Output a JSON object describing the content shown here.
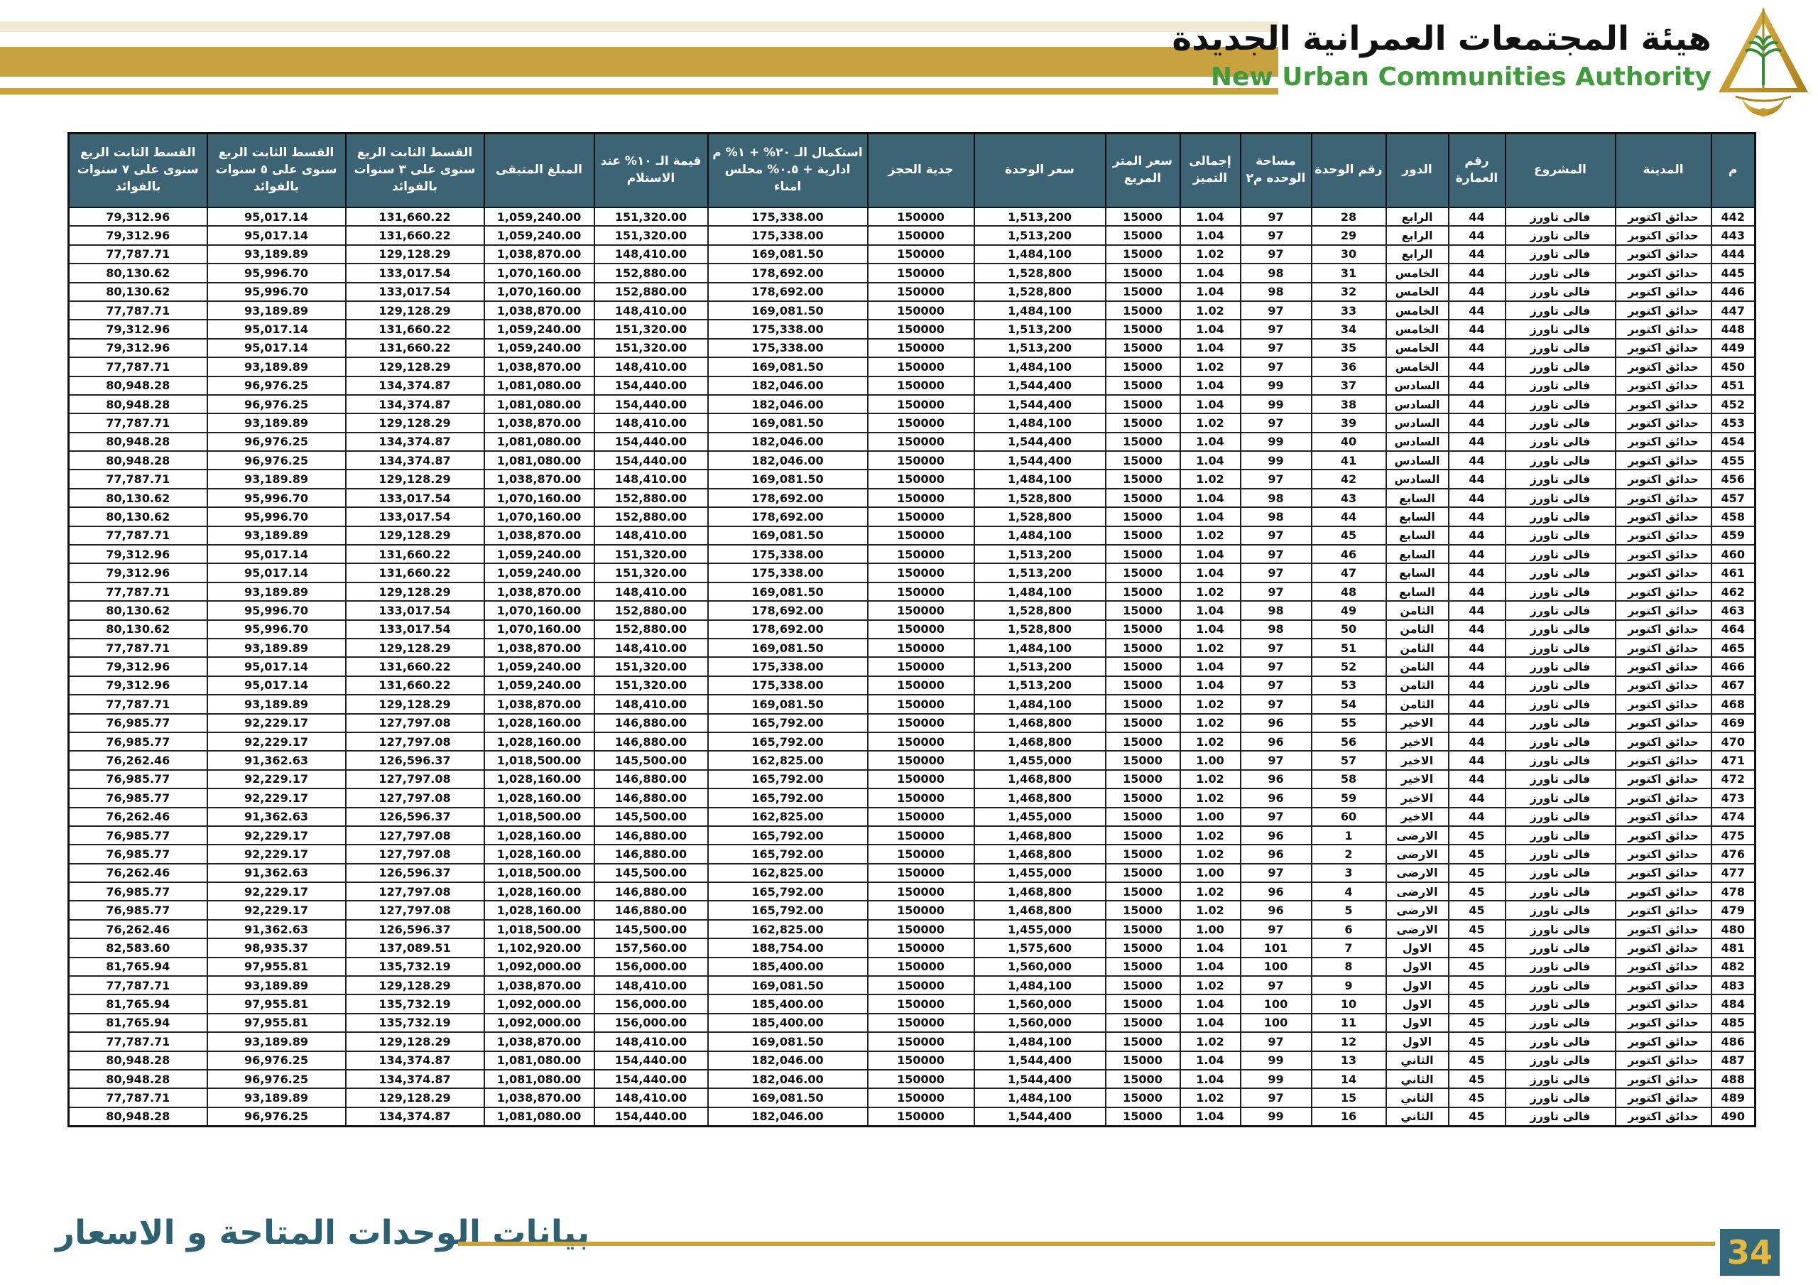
{
  "header": {
    "title_ar": "هيئة المجتمعات العمرانية الجديدة",
    "title_en": "New Urban Communities Authority",
    "logo_icon": "nuca-pyramid-palm-logo"
  },
  "colors": {
    "teal_header": "#3d6474",
    "gold_accent": "#c8a23f",
    "red_building_no": "#e8322a",
    "green_title": "#3f9b3c",
    "footer_teal": "#2d6070",
    "page_number_gold": "#e5b83e"
  },
  "footer": {
    "caption": "بيانات الوحدات المتاحة و الاسعار",
    "page_number": "34"
  },
  "table": {
    "columns": [
      {
        "id": "serial",
        "label": "م"
      },
      {
        "id": "city",
        "label": "المدينة"
      },
      {
        "id": "project",
        "label": "المشروع"
      },
      {
        "id": "building_no",
        "label": "رقم العمارة"
      },
      {
        "id": "floor",
        "label": "الدور"
      },
      {
        "id": "unit_no",
        "label": "رقم الوحدة"
      },
      {
        "id": "area_m2",
        "label": "مساحة الوحده م٢"
      },
      {
        "id": "premium_total",
        "label": "إجمالى التميز"
      },
      {
        "id": "price_per_m2",
        "label": "سعر المتر المربع"
      },
      {
        "id": "unit_price",
        "label": "سعر الوحدة"
      },
      {
        "id": "reservation_deposit",
        "label": "جدية الحجز"
      },
      {
        "id": "completion_20pct",
        "label": "استكمال الـ ٢٠% + ١% م ادارية + ٠.٥% مجلس امناء"
      },
      {
        "id": "value_10pct_delivery",
        "label": "قيمة الـ ١٠% عند الاستلام"
      },
      {
        "id": "remaining_amount",
        "label": "المبلغ المتبقى"
      },
      {
        "id": "installment_3y",
        "label": "القسط الثابت الربع سنوى على ٣ سنوات بالفوائد"
      },
      {
        "id": "installment_5y",
        "label": "القسط الثابت الربع سنوى على ٥ سنوات بالفوائد"
      },
      {
        "id": "installment_7y",
        "label": "القسط الثابت الربع سنوى على ٧ سنوات بالفوائد"
      }
    ],
    "rows": [
      [
        "442",
        "حدائق اكتوبر",
        "فالى تاورز",
        "44",
        "الرابع",
        "28",
        "97",
        "1.04",
        "15000",
        "1,513,200",
        "150000",
        "175,338.00",
        "151,320.00",
        "1,059,240.00",
        "131,660.22",
        "95,017.14",
        "79,312.96"
      ],
      [
        "443",
        "حدائق اكتوبر",
        "فالى تاورز",
        "44",
        "الرابع",
        "29",
        "97",
        "1.04",
        "15000",
        "1,513,200",
        "150000",
        "175,338.00",
        "151,320.00",
        "1,059,240.00",
        "131,660.22",
        "95,017.14",
        "79,312.96"
      ],
      [
        "444",
        "حدائق اكتوبر",
        "فالى تاورز",
        "44",
        "الرابع",
        "30",
        "97",
        "1.02",
        "15000",
        "1,484,100",
        "150000",
        "169,081.50",
        "148,410.00",
        "1,038,870.00",
        "129,128.29",
        "93,189.89",
        "77,787.71"
      ],
      [
        "445",
        "حدائق اكتوبر",
        "فالى تاورز",
        "44",
        "الخامس",
        "31",
        "98",
        "1.04",
        "15000",
        "1,528,800",
        "150000",
        "178,692.00",
        "152,880.00",
        "1,070,160.00",
        "133,017.54",
        "95,996.70",
        "80,130.62"
      ],
      [
        "446",
        "حدائق اكتوبر",
        "فالى تاورز",
        "44",
        "الخامس",
        "32",
        "98",
        "1.04",
        "15000",
        "1,528,800",
        "150000",
        "178,692.00",
        "152,880.00",
        "1,070,160.00",
        "133,017.54",
        "95,996.70",
        "80,130.62"
      ],
      [
        "447",
        "حدائق اكتوبر",
        "فالى تاورز",
        "44",
        "الخامس",
        "33",
        "97",
        "1.02",
        "15000",
        "1,484,100",
        "150000",
        "169,081.50",
        "148,410.00",
        "1,038,870.00",
        "129,128.29",
        "93,189.89",
        "77,787.71"
      ],
      [
        "448",
        "حدائق اكتوبر",
        "فالى تاورز",
        "44",
        "الخامس",
        "34",
        "97",
        "1.04",
        "15000",
        "1,513,200",
        "150000",
        "175,338.00",
        "151,320.00",
        "1,059,240.00",
        "131,660.22",
        "95,017.14",
        "79,312.96"
      ],
      [
        "449",
        "حدائق اكتوبر",
        "فالى تاورز",
        "44",
        "الخامس",
        "35",
        "97",
        "1.04",
        "15000",
        "1,513,200",
        "150000",
        "175,338.00",
        "151,320.00",
        "1,059,240.00",
        "131,660.22",
        "95,017.14",
        "79,312.96"
      ],
      [
        "450",
        "حدائق اكتوبر",
        "فالى تاورز",
        "44",
        "الخامس",
        "36",
        "97",
        "1.02",
        "15000",
        "1,484,100",
        "150000",
        "169,081.50",
        "148,410.00",
        "1,038,870.00",
        "129,128.29",
        "93,189.89",
        "77,787.71"
      ],
      [
        "451",
        "حدائق اكتوبر",
        "فالى تاورز",
        "44",
        "السادس",
        "37",
        "99",
        "1.04",
        "15000",
        "1,544,400",
        "150000",
        "182,046.00",
        "154,440.00",
        "1,081,080.00",
        "134,374.87",
        "96,976.25",
        "80,948.28"
      ],
      [
        "452",
        "حدائق اكتوبر",
        "فالى تاورز",
        "44",
        "السادس",
        "38",
        "99",
        "1.04",
        "15000",
        "1,544,400",
        "150000",
        "182,046.00",
        "154,440.00",
        "1,081,080.00",
        "134,374.87",
        "96,976.25",
        "80,948.28"
      ],
      [
        "453",
        "حدائق اكتوبر",
        "فالى تاورز",
        "44",
        "السادس",
        "39",
        "97",
        "1.02",
        "15000",
        "1,484,100",
        "150000",
        "169,081.50",
        "148,410.00",
        "1,038,870.00",
        "129,128.29",
        "93,189.89",
        "77,787.71"
      ],
      [
        "454",
        "حدائق اكتوبر",
        "فالى تاورز",
        "44",
        "السادس",
        "40",
        "99",
        "1.04",
        "15000",
        "1,544,400",
        "150000",
        "182,046.00",
        "154,440.00",
        "1,081,080.00",
        "134,374.87",
        "96,976.25",
        "80,948.28"
      ],
      [
        "455",
        "حدائق اكتوبر",
        "فالى تاورز",
        "44",
        "السادس",
        "41",
        "99",
        "1.04",
        "15000",
        "1,544,400",
        "150000",
        "182,046.00",
        "154,440.00",
        "1,081,080.00",
        "134,374.87",
        "96,976.25",
        "80,948.28"
      ],
      [
        "456",
        "حدائق اكتوبر",
        "فالى تاورز",
        "44",
        "السادس",
        "42",
        "97",
        "1.02",
        "15000",
        "1,484,100",
        "150000",
        "169,081.50",
        "148,410.00",
        "1,038,870.00",
        "129,128.29",
        "93,189.89",
        "77,787.71"
      ],
      [
        "457",
        "حدائق اكتوبر",
        "فالى تاورز",
        "44",
        "السابع",
        "43",
        "98",
        "1.04",
        "15000",
        "1,528,800",
        "150000",
        "178,692.00",
        "152,880.00",
        "1,070,160.00",
        "133,017.54",
        "95,996.70",
        "80,130.62"
      ],
      [
        "458",
        "حدائق اكتوبر",
        "فالى تاورز",
        "44",
        "السابع",
        "44",
        "98",
        "1.04",
        "15000",
        "1,528,800",
        "150000",
        "178,692.00",
        "152,880.00",
        "1,070,160.00",
        "133,017.54",
        "95,996.70",
        "80,130.62"
      ],
      [
        "459",
        "حدائق اكتوبر",
        "فالى تاورز",
        "44",
        "السابع",
        "45",
        "97",
        "1.02",
        "15000",
        "1,484,100",
        "150000",
        "169,081.50",
        "148,410.00",
        "1,038,870.00",
        "129,128.29",
        "93,189.89",
        "77,787.71"
      ],
      [
        "460",
        "حدائق اكتوبر",
        "فالى تاورز",
        "44",
        "السابع",
        "46",
        "97",
        "1.04",
        "15000",
        "1,513,200",
        "150000",
        "175,338.00",
        "151,320.00",
        "1,059,240.00",
        "131,660.22",
        "95,017.14",
        "79,312.96"
      ],
      [
        "461",
        "حدائق اكتوبر",
        "فالى تاورز",
        "44",
        "السابع",
        "47",
        "97",
        "1.04",
        "15000",
        "1,513,200",
        "150000",
        "175,338.00",
        "151,320.00",
        "1,059,240.00",
        "131,660.22",
        "95,017.14",
        "79,312.96"
      ],
      [
        "462",
        "حدائق اكتوبر",
        "فالى تاورز",
        "44",
        "السابع",
        "48",
        "97",
        "1.02",
        "15000",
        "1,484,100",
        "150000",
        "169,081.50",
        "148,410.00",
        "1,038,870.00",
        "129,128.29",
        "93,189.89",
        "77,787.71"
      ],
      [
        "463",
        "حدائق اكتوبر",
        "فالى تاورز",
        "44",
        "الثامن",
        "49",
        "98",
        "1.04",
        "15000",
        "1,528,800",
        "150000",
        "178,692.00",
        "152,880.00",
        "1,070,160.00",
        "133,017.54",
        "95,996.70",
        "80,130.62"
      ],
      [
        "464",
        "حدائق اكتوبر",
        "فالى تاورز",
        "44",
        "الثامن",
        "50",
        "98",
        "1.04",
        "15000",
        "1,528,800",
        "150000",
        "178,692.00",
        "152,880.00",
        "1,070,160.00",
        "133,017.54",
        "95,996.70",
        "80,130.62"
      ],
      [
        "465",
        "حدائق اكتوبر",
        "فالى تاورز",
        "44",
        "الثامن",
        "51",
        "97",
        "1.02",
        "15000",
        "1,484,100",
        "150000",
        "169,081.50",
        "148,410.00",
        "1,038,870.00",
        "129,128.29",
        "93,189.89",
        "77,787.71"
      ],
      [
        "466",
        "حدائق اكتوبر",
        "فالى تاورز",
        "44",
        "الثامن",
        "52",
        "97",
        "1.04",
        "15000",
        "1,513,200",
        "150000",
        "175,338.00",
        "151,320.00",
        "1,059,240.00",
        "131,660.22",
        "95,017.14",
        "79,312.96"
      ],
      [
        "467",
        "حدائق اكتوبر",
        "فالى تاورز",
        "44",
        "الثامن",
        "53",
        "97",
        "1.04",
        "15000",
        "1,513,200",
        "150000",
        "175,338.00",
        "151,320.00",
        "1,059,240.00",
        "131,660.22",
        "95,017.14",
        "79,312.96"
      ],
      [
        "468",
        "حدائق اكتوبر",
        "فالى تاورز",
        "44",
        "الثامن",
        "54",
        "97",
        "1.02",
        "15000",
        "1,484,100",
        "150000",
        "169,081.50",
        "148,410.00",
        "1,038,870.00",
        "129,128.29",
        "93,189.89",
        "77,787.71"
      ],
      [
        "469",
        "حدائق اكتوبر",
        "فالى تاورز",
        "44",
        "الاخير",
        "55",
        "96",
        "1.02",
        "15000",
        "1,468,800",
        "150000",
        "165,792.00",
        "146,880.00",
        "1,028,160.00",
        "127,797.08",
        "92,229.17",
        "76,985.77"
      ],
      [
        "470",
        "حدائق اكتوبر",
        "فالى تاورز",
        "44",
        "الاخير",
        "56",
        "96",
        "1.02",
        "15000",
        "1,468,800",
        "150000",
        "165,792.00",
        "146,880.00",
        "1,028,160.00",
        "127,797.08",
        "92,229.17",
        "76,985.77"
      ],
      [
        "471",
        "حدائق اكتوبر",
        "فالى تاورز",
        "44",
        "الاخير",
        "57",
        "97",
        "1.00",
        "15000",
        "1,455,000",
        "150000",
        "162,825.00",
        "145,500.00",
        "1,018,500.00",
        "126,596.37",
        "91,362.63",
        "76,262.46"
      ],
      [
        "472",
        "حدائق اكتوبر",
        "فالى تاورز",
        "44",
        "الاخير",
        "58",
        "96",
        "1.02",
        "15000",
        "1,468,800",
        "150000",
        "165,792.00",
        "146,880.00",
        "1,028,160.00",
        "127,797.08",
        "92,229.17",
        "76,985.77"
      ],
      [
        "473",
        "حدائق اكتوبر",
        "فالى تاورز",
        "44",
        "الاخير",
        "59",
        "96",
        "1.02",
        "15000",
        "1,468,800",
        "150000",
        "165,792.00",
        "146,880.00",
        "1,028,160.00",
        "127,797.08",
        "92,229.17",
        "76,985.77"
      ],
      [
        "474",
        "حدائق اكتوبر",
        "فالى تاورز",
        "44",
        "الاخير",
        "60",
        "97",
        "1.00",
        "15000",
        "1,455,000",
        "150000",
        "162,825.00",
        "145,500.00",
        "1,018,500.00",
        "126,596.37",
        "91,362.63",
        "76,262.46"
      ],
      [
        "475",
        "حدائق اكتوبر",
        "فالى تاورز",
        "45",
        "الارضى",
        "1",
        "96",
        "1.02",
        "15000",
        "1,468,800",
        "150000",
        "165,792.00",
        "146,880.00",
        "1,028,160.00",
        "127,797.08",
        "92,229.17",
        "76,985.77"
      ],
      [
        "476",
        "حدائق اكتوبر",
        "فالى تاورز",
        "45",
        "الارضى",
        "2",
        "96",
        "1.02",
        "15000",
        "1,468,800",
        "150000",
        "165,792.00",
        "146,880.00",
        "1,028,160.00",
        "127,797.08",
        "92,229.17",
        "76,985.77"
      ],
      [
        "477",
        "حدائق اكتوبر",
        "فالى تاورز",
        "45",
        "الارضى",
        "3",
        "97",
        "1.00",
        "15000",
        "1,455,000",
        "150000",
        "162,825.00",
        "145,500.00",
        "1,018,500.00",
        "126,596.37",
        "91,362.63",
        "76,262.46"
      ],
      [
        "478",
        "حدائق اكتوبر",
        "فالى تاورز",
        "45",
        "الارضى",
        "4",
        "96",
        "1.02",
        "15000",
        "1,468,800",
        "150000",
        "165,792.00",
        "146,880.00",
        "1,028,160.00",
        "127,797.08",
        "92,229.17",
        "76,985.77"
      ],
      [
        "479",
        "حدائق اكتوبر",
        "فالى تاورز",
        "45",
        "الارضى",
        "5",
        "96",
        "1.02",
        "15000",
        "1,468,800",
        "150000",
        "165,792.00",
        "146,880.00",
        "1,028,160.00",
        "127,797.08",
        "92,229.17",
        "76,985.77"
      ],
      [
        "480",
        "حدائق اكتوبر",
        "فالى تاورز",
        "45",
        "الارضى",
        "6",
        "97",
        "1.00",
        "15000",
        "1,455,000",
        "150000",
        "162,825.00",
        "145,500.00",
        "1,018,500.00",
        "126,596.37",
        "91,362.63",
        "76,262.46"
      ],
      [
        "481",
        "حدائق اكتوبر",
        "فالى تاورز",
        "45",
        "الاول",
        "7",
        "101",
        "1.04",
        "15000",
        "1,575,600",
        "150000",
        "188,754.00",
        "157,560.00",
        "1,102,920.00",
        "137,089.51",
        "98,935.37",
        "82,583.60"
      ],
      [
        "482",
        "حدائق اكتوبر",
        "فالى تاورز",
        "45",
        "الاول",
        "8",
        "100",
        "1.04",
        "15000",
        "1,560,000",
        "150000",
        "185,400.00",
        "156,000.00",
        "1,092,000.00",
        "135,732.19",
        "97,955.81",
        "81,765.94"
      ],
      [
        "483",
        "حدائق اكتوبر",
        "فالى تاورز",
        "45",
        "الاول",
        "9",
        "97",
        "1.02",
        "15000",
        "1,484,100",
        "150000",
        "169,081.50",
        "148,410.00",
        "1,038,870.00",
        "129,128.29",
        "93,189.89",
        "77,787.71"
      ],
      [
        "484",
        "حدائق اكتوبر",
        "فالى تاورز",
        "45",
        "الاول",
        "10",
        "100",
        "1.04",
        "15000",
        "1,560,000",
        "150000",
        "185,400.00",
        "156,000.00",
        "1,092,000.00",
        "135,732.19",
        "97,955.81",
        "81,765.94"
      ],
      [
        "485",
        "حدائق اكتوبر",
        "فالى تاورز",
        "45",
        "الاول",
        "11",
        "100",
        "1.04",
        "15000",
        "1,560,000",
        "150000",
        "185,400.00",
        "156,000.00",
        "1,092,000.00",
        "135,732.19",
        "97,955.81",
        "81,765.94"
      ],
      [
        "486",
        "حدائق اكتوبر",
        "فالى تاورز",
        "45",
        "الاول",
        "12",
        "97",
        "1.02",
        "15000",
        "1,484,100",
        "150000",
        "169,081.50",
        "148,410.00",
        "1,038,870.00",
        "129,128.29",
        "93,189.89",
        "77,787.71"
      ],
      [
        "487",
        "حدائق اكتوبر",
        "فالى تاورز",
        "45",
        "الثاني",
        "13",
        "99",
        "1.04",
        "15000",
        "1,544,400",
        "150000",
        "182,046.00",
        "154,440.00",
        "1,081,080.00",
        "134,374.87",
        "96,976.25",
        "80,948.28"
      ],
      [
        "488",
        "حدائق اكتوبر",
        "فالى تاورز",
        "45",
        "الثاني",
        "14",
        "99",
        "1.04",
        "15000",
        "1,544,400",
        "150000",
        "182,046.00",
        "154,440.00",
        "1,081,080.00",
        "134,374.87",
        "96,976.25",
        "80,948.28"
      ],
      [
        "489",
        "حدائق اكتوبر",
        "فالى تاورز",
        "45",
        "الثاني",
        "15",
        "97",
        "1.02",
        "15000",
        "1,484,100",
        "150000",
        "169,081.50",
        "148,410.00",
        "1,038,870.00",
        "129,128.29",
        "93,189.89",
        "77,787.71"
      ],
      [
        "490",
        "حدائق اكتوبر",
        "فالى تاورز",
        "45",
        "الثاني",
        "16",
        "99",
        "1.04",
        "15000",
        "1,544,400",
        "150000",
        "182,046.00",
        "154,440.00",
        "1,081,080.00",
        "134,374.87",
        "96,976.25",
        "80,948.28"
      ]
    ]
  }
}
